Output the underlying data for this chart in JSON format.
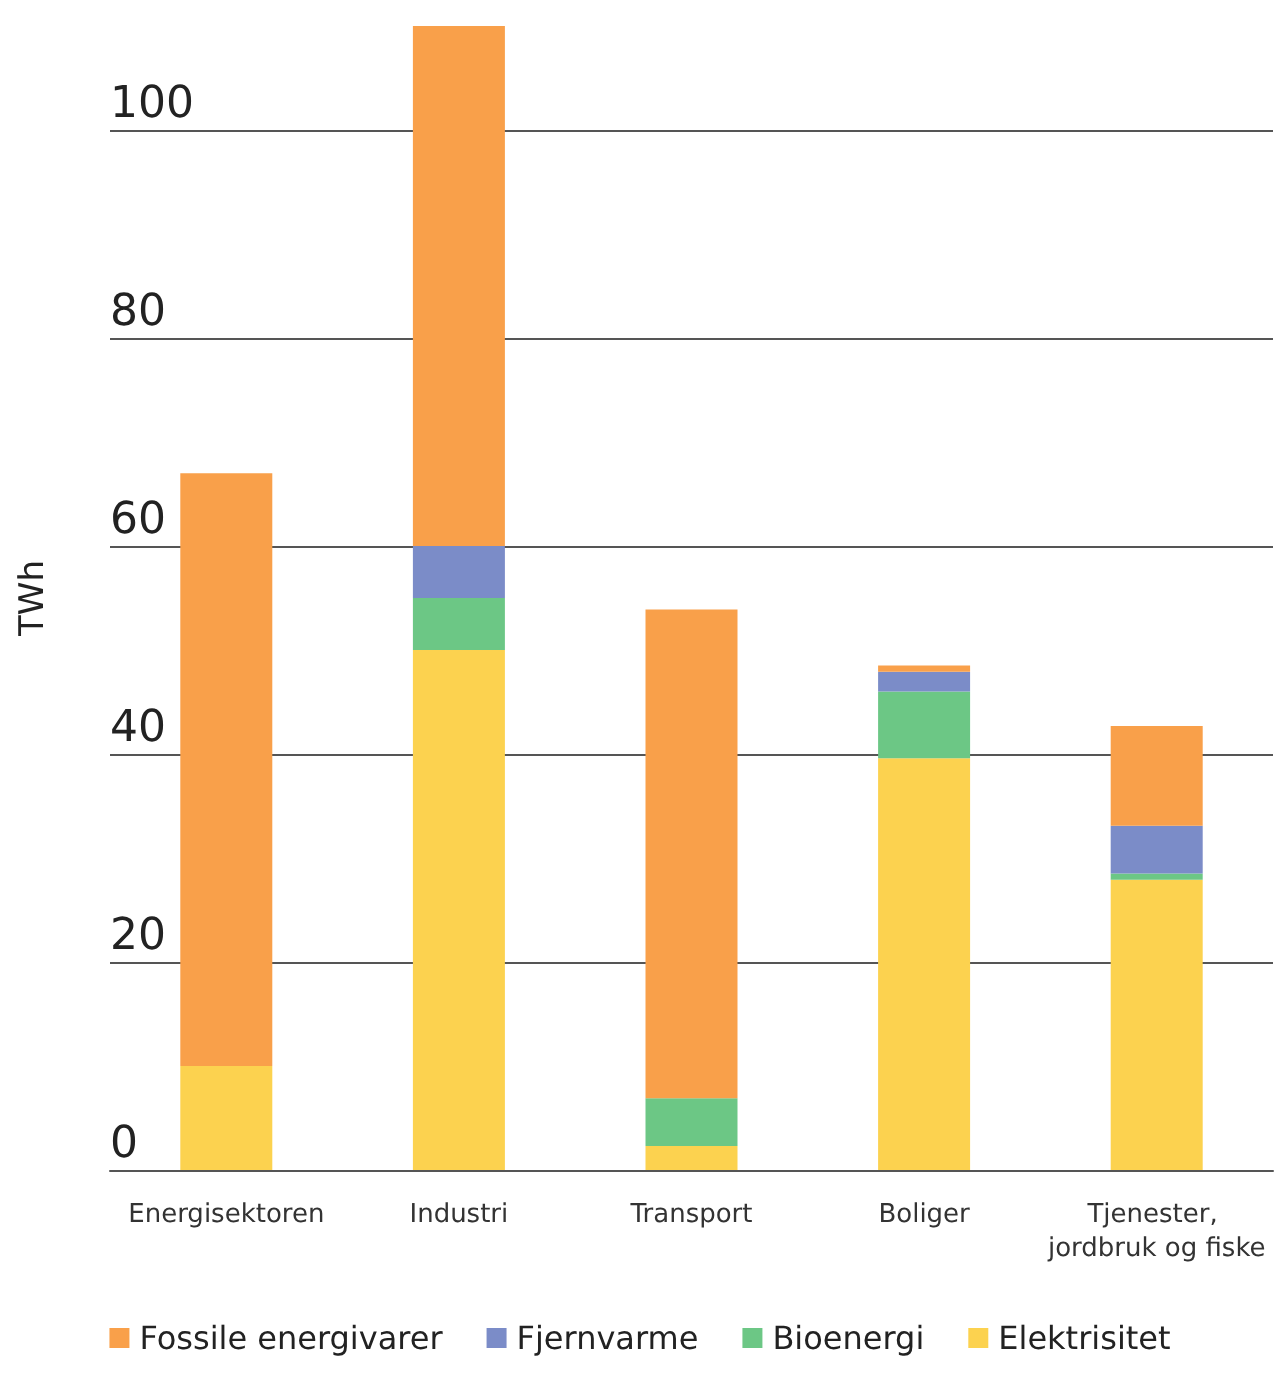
{
  "chart_data": {
    "type": "bar",
    "stacked": true,
    "ylabel": "TWh",
    "categories": [
      "Energisektoren",
      "Industri",
      "Transport",
      "Boliger",
      "Tjenester, jordbruk og fiske"
    ],
    "series": [
      {
        "name": "Elektrisitet",
        "color": "#fcd24f",
        "values": [
          10,
          50,
          2.3,
          39.6,
          27.9
        ]
      },
      {
        "name": "Bioenergi",
        "color": "#6cc785",
        "values": [
          0,
          5,
          4.6,
          6.4,
          0.6
        ]
      },
      {
        "name": "Fjernvarme",
        "color": "#7b8cc8",
        "values": [
          0,
          5,
          0,
          1.9,
          4.6
        ]
      },
      {
        "name": "Fossile energivarer",
        "color": "#f9a04a",
        "values": [
          57,
          50,
          47,
          0.6,
          9.6
        ]
      }
    ],
    "ylim": [
      0,
      110
    ],
    "yticks": [
      0,
      20,
      40,
      60,
      80,
      100
    ],
    "grid": "y",
    "legend": "bottom"
  }
}
